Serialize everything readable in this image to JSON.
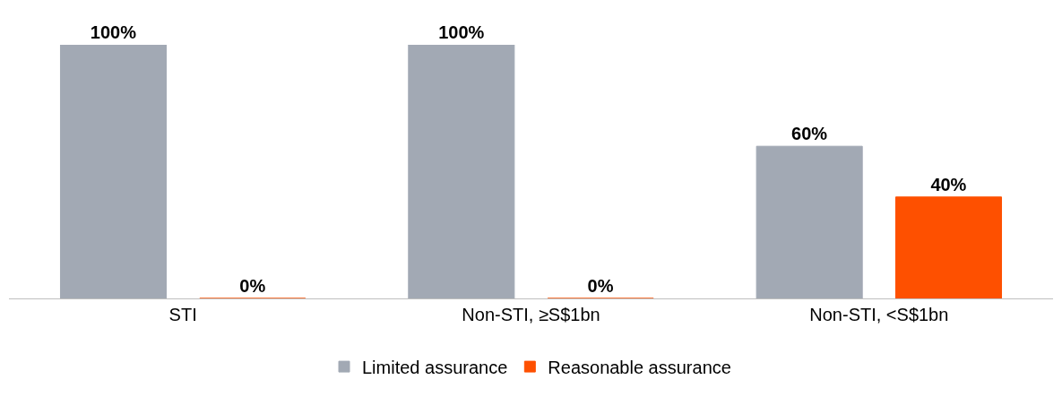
{
  "chart_data": {
    "type": "bar",
    "categories": [
      "STI",
      "Non-STI, ≥S$1bn",
      "Non-STI, <S$1bn"
    ],
    "series": [
      {
        "name": "Limited assurance",
        "color": "#a2a9b4",
        "values": [
          100,
          100,
          60
        ],
        "value_labels": [
          "100%",
          "100%",
          "60%"
        ]
      },
      {
        "name": "Reasonable assurance",
        "color": "#fe5000",
        "values": [
          0,
          0,
          40
        ],
        "value_labels": [
          "0%",
          "0%",
          "40%"
        ]
      }
    ],
    "legend": "bottom",
    "tick_labels": "x"
  }
}
